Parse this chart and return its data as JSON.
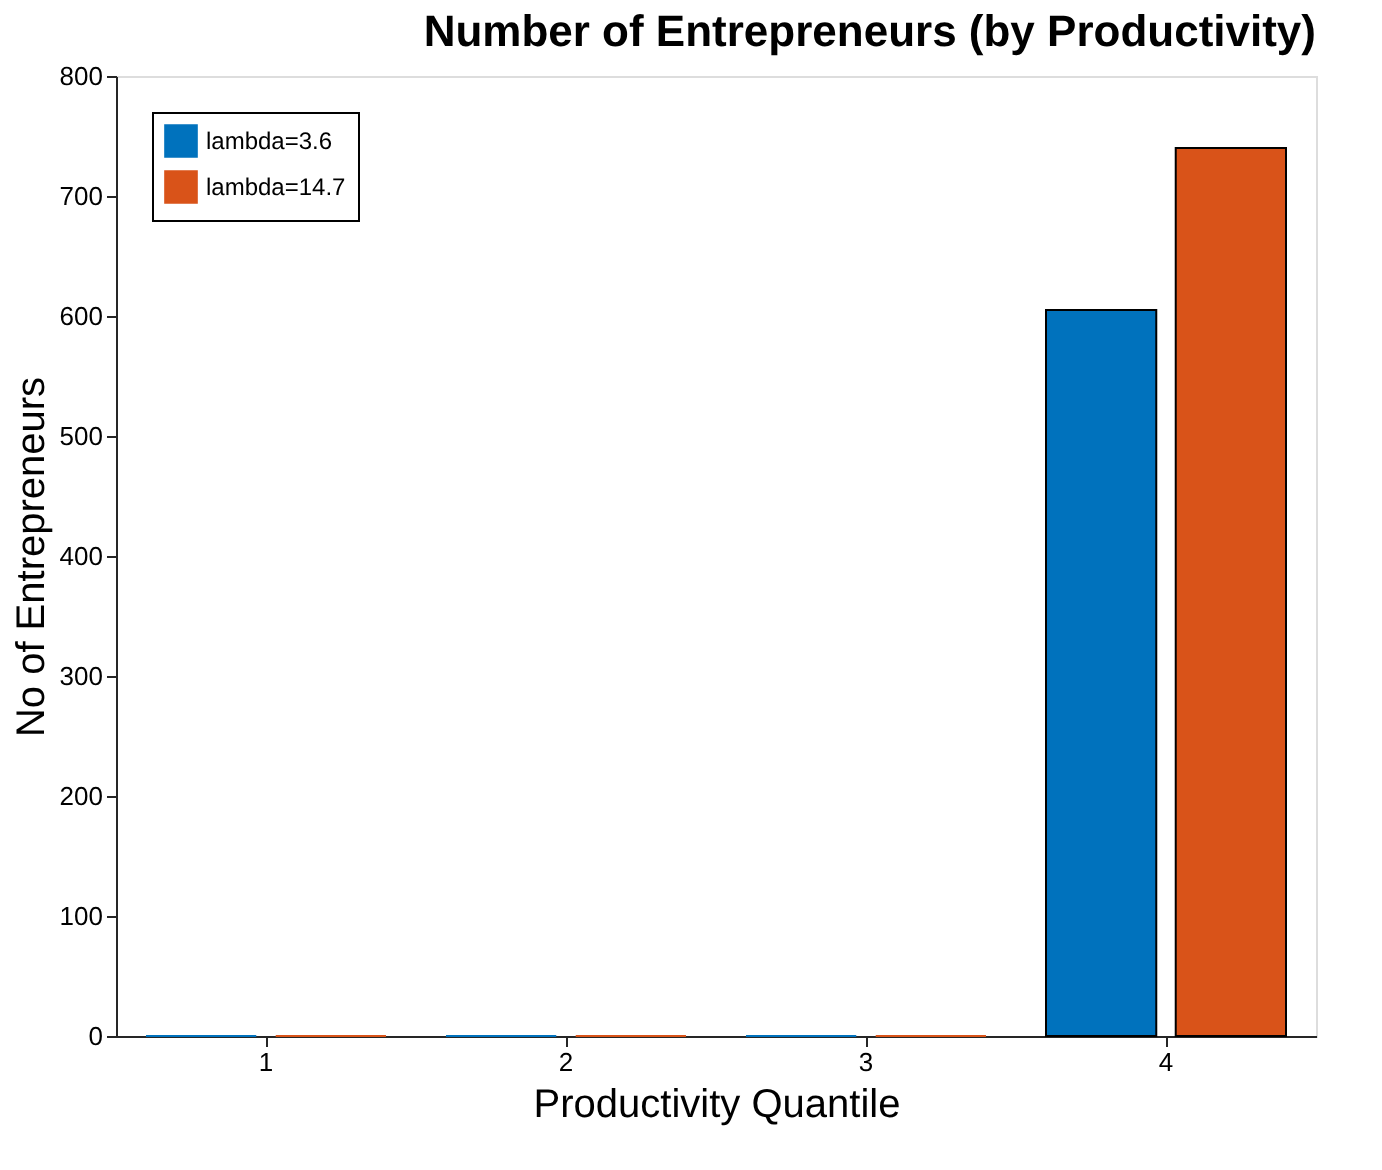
{
  "chart_data": {
    "type": "bar",
    "title": "Number of Entrepreneurs (by Productivity)",
    "xlabel": "Productivity Quantile",
    "ylabel": "No of Entrepreneurs",
    "categories": [
      "1",
      "2",
      "3",
      "4"
    ],
    "series": [
      {
        "name": "lambda=3.6",
        "color": "#0072bd",
        "values": [
          0,
          0,
          0,
          605
        ]
      },
      {
        "name": "lambda=14.7",
        "color": "#d95319",
        "values": [
          0,
          0,
          0,
          740
        ]
      }
    ],
    "ylim": [
      0,
      800
    ],
    "yticks": [
      0,
      100,
      200,
      300,
      400,
      500,
      600,
      700,
      800
    ],
    "grid": false,
    "legend": "top left"
  }
}
